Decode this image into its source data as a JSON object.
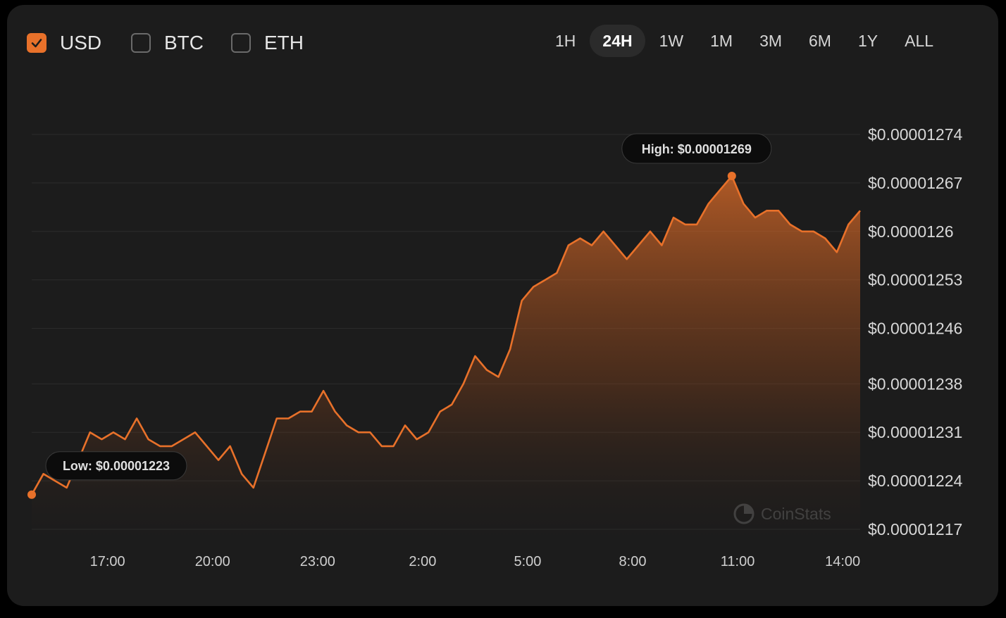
{
  "currencies": [
    {
      "label": "USD",
      "checked": true
    },
    {
      "label": "BTC",
      "checked": false
    },
    {
      "label": "ETH",
      "checked": false
    }
  ],
  "time_ranges": [
    "1H",
    "24H",
    "1W",
    "1M",
    "3M",
    "6M",
    "1Y",
    "ALL"
  ],
  "active_range": "24H",
  "watermark": "CoinStats",
  "colors": {
    "accent": "#e8712a",
    "background": "#1c1c1c",
    "outer": "#000000"
  },
  "chart_data": {
    "type": "area",
    "title": "",
    "xlabel": "",
    "ylabel": "",
    "grid": true,
    "x_ticks": [
      "17:00",
      "20:00",
      "23:00",
      "2:00",
      "5:00",
      "8:00",
      "11:00",
      "14:00"
    ],
    "y_ticks": [
      "$0.00001274",
      "$0.00001267",
      "$0.0000126",
      "$0.00001253",
      "$0.00001246",
      "$0.00001238",
      "$0.00001231",
      "$0.00001224",
      "$0.00001217"
    ],
    "y_tick_values": [
      1.274e-05,
      1.267e-05,
      1.26e-05,
      1.253e-05,
      1.246e-05,
      1.238e-05,
      1.231e-05,
      1.224e-05,
      1.217e-05
    ],
    "high_label": "High: $0.00001269",
    "low_label": "Low: $0.00001223",
    "x": [
      "14:50",
      "15:10",
      "15:30",
      "15:50",
      "16:10",
      "16:30",
      "16:50",
      "17:10",
      "17:30",
      "17:50",
      "18:10",
      "18:30",
      "18:50",
      "19:10",
      "19:30",
      "19:50",
      "20:10",
      "20:30",
      "20:50",
      "21:10",
      "21:30",
      "21:50",
      "22:10",
      "22:30",
      "22:50",
      "23:10",
      "23:30",
      "23:50",
      "0:10",
      "0:30",
      "0:50",
      "1:10",
      "1:30",
      "1:50",
      "2:10",
      "2:30",
      "2:50",
      "3:10",
      "3:30",
      "3:50",
      "4:10",
      "4:30",
      "4:50",
      "5:10",
      "5:30",
      "5:50",
      "6:10",
      "6:30",
      "6:50",
      "7:10",
      "7:30",
      "7:50",
      "8:10",
      "8:30",
      "8:50",
      "9:10",
      "9:30",
      "9:50",
      "10:10",
      "10:30",
      "10:50",
      "11:10",
      "11:30",
      "11:50",
      "12:10",
      "12:30",
      "12:50",
      "13:10",
      "13:30",
      "13:50",
      "14:10",
      "14:30"
    ],
    "values": [
      1.222e-05,
      1.225e-05,
      1.224e-05,
      1.223e-05,
      1.227e-05,
      1.231e-05,
      1.23e-05,
      1.231e-05,
      1.23e-05,
      1.233e-05,
      1.23e-05,
      1.229e-05,
      1.229e-05,
      1.23e-05,
      1.231e-05,
      1.229e-05,
      1.227e-05,
      1.229e-05,
      1.225e-05,
      1.223e-05,
      1.228e-05,
      1.233e-05,
      1.233e-05,
      1.234e-05,
      1.234e-05,
      1.237e-05,
      1.234e-05,
      1.232e-05,
      1.231e-05,
      1.231e-05,
      1.229e-05,
      1.229e-05,
      1.232e-05,
      1.23e-05,
      1.231e-05,
      1.234e-05,
      1.235e-05,
      1.238e-05,
      1.242e-05,
      1.24e-05,
      1.239e-05,
      1.243e-05,
      1.25e-05,
      1.252e-05,
      1.253e-05,
      1.254e-05,
      1.258e-05,
      1.259e-05,
      1.258e-05,
      1.26e-05,
      1.258e-05,
      1.256e-05,
      1.258e-05,
      1.26e-05,
      1.258e-05,
      1.262e-05,
      1.261e-05,
      1.261e-05,
      1.264e-05,
      1.266e-05,
      1.268e-05,
      1.264e-05,
      1.262e-05,
      1.263e-05,
      1.263e-05,
      1.261e-05,
      1.26e-05,
      1.26e-05,
      1.259e-05,
      1.257e-05,
      1.261e-05,
      1.263e-05
    ]
  }
}
